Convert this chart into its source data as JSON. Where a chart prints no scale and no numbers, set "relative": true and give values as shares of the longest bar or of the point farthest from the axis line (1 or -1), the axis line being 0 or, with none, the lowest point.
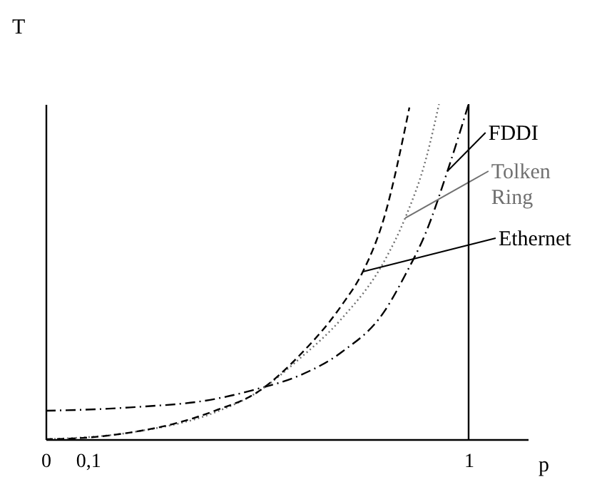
{
  "chart_data": {
    "type": "line",
    "relative": true,
    "xlabel": "p",
    "ylabel": "T",
    "x": [
      0,
      0.1,
      0.2,
      0.3,
      0.4,
      0.5,
      0.6,
      0.7,
      0.75,
      0.8,
      0.86
    ],
    "xlim": [
      0,
      1.14
    ],
    "xticks": [
      0,
      {
        "value": 0.1,
        "label": "0,1"
      },
      1
    ],
    "series": [
      {
        "name": "FDDI",
        "color": "#000000",
        "line_style": "dashdot",
        "x": [
          0,
          0.2,
          0.4,
          0.5,
          0.6,
          0.7,
          0.8,
          0.85,
          0.9,
          0.95,
          1.0
        ],
        "values": [
          0.085,
          0.095,
          0.12,
          0.15,
          0.19,
          0.26,
          0.38,
          0.49,
          0.62,
          0.8,
          1.0
        ]
      },
      {
        "name": "Tolken Ring",
        "color": "#707070",
        "line_style": "dotted",
        "x": [
          0,
          0.2,
          0.4,
          0.5,
          0.6,
          0.7,
          0.8,
          0.85,
          0.9,
          0.93
        ],
        "values": [
          0,
          0.02,
          0.08,
          0.14,
          0.24,
          0.36,
          0.53,
          0.66,
          0.84,
          1.0
        ]
      },
      {
        "name": "Ethernet",
        "color": "#000000",
        "line_style": "dashed",
        "values": [
          0,
          0.005,
          0.02,
          0.045,
          0.085,
          0.14,
          0.25,
          0.4,
          0.5,
          0.66,
          0.99
        ]
      }
    ],
    "ref_lines": [
      {
        "axis": "x",
        "value": 1,
        "color": "#000000"
      }
    ],
    "grid": false,
    "legend": "right"
  }
}
